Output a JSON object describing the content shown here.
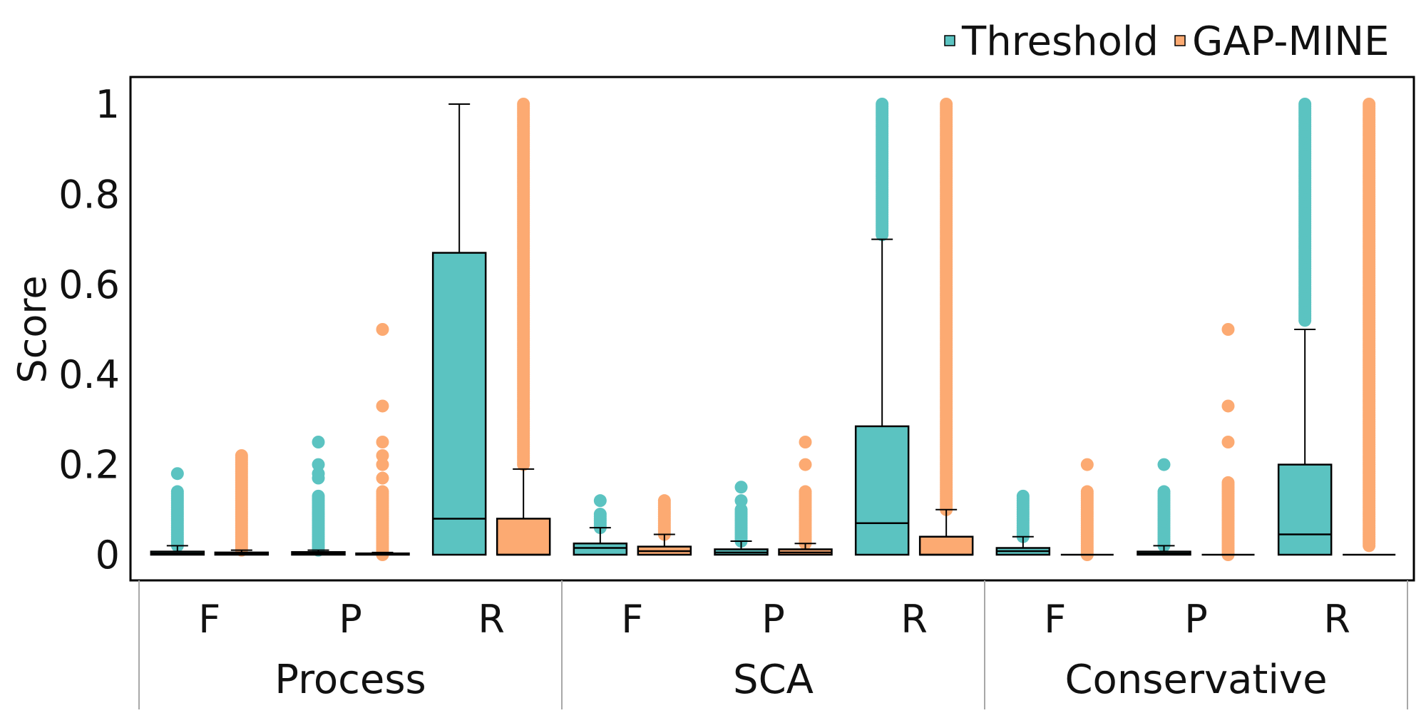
{
  "chart_data": {
    "type": "boxplot",
    "ylabel": "Score",
    "ylim": [
      0,
      1
    ],
    "yticks": [
      0,
      0.2,
      0.4,
      0.6,
      0.8,
      1
    ],
    "ytick_labels": [
      "0",
      "0.2",
      "0.4",
      "0.6",
      "0.8",
      "1"
    ],
    "legend_position": "top-right",
    "groups": [
      "Process",
      "SCA",
      "Conservative"
    ],
    "categories": [
      "F",
      "P",
      "R"
    ],
    "series": [
      {
        "name": "Threshold",
        "color": "#5BC3C1",
        "boxes": [
          {
            "group": "Process",
            "category": "F",
            "min": 0,
            "q1": 0,
            "median": 0.003,
            "q3": 0.007,
            "max": 0.02,
            "outliers_range": [
              0.02,
              0.14
            ],
            "outliers_extra": [
              0.18
            ]
          },
          {
            "group": "Process",
            "category": "P",
            "min": 0,
            "q1": 0,
            "median": 0.003,
            "q3": 0.006,
            "max": 0.01,
            "outliers_range": [
              0.01,
              0.13
            ],
            "outliers_extra": [
              0.17,
              0.18,
              0.2,
              0.25
            ]
          },
          {
            "group": "Process",
            "category": "R",
            "min": 0,
            "q1": 0,
            "median": 0.08,
            "q3": 0.67,
            "max": 1.0,
            "outliers_range": null,
            "outliers_extra": []
          },
          {
            "group": "SCA",
            "category": "F",
            "min": 0,
            "q1": 0,
            "median": 0.015,
            "q3": 0.025,
            "max": 0.06,
            "outliers_range": [
              0.06,
              0.09
            ],
            "outliers_extra": [
              0.12
            ]
          },
          {
            "group": "SCA",
            "category": "P",
            "min": 0,
            "q1": 0,
            "median": 0.005,
            "q3": 0.012,
            "max": 0.03,
            "outliers_range": [
              0.03,
              0.1
            ],
            "outliers_extra": [
              0.12,
              0.15
            ]
          },
          {
            "group": "SCA",
            "category": "R",
            "min": 0,
            "q1": 0,
            "median": 0.07,
            "q3": 0.285,
            "max": 0.7,
            "outliers_range": [
              0.71,
              1.0
            ],
            "outliers_extra": []
          },
          {
            "group": "Conservative",
            "category": "F",
            "min": 0,
            "q1": 0,
            "median": 0.008,
            "q3": 0.015,
            "max": 0.04,
            "outliers_range": [
              0.04,
              0.13
            ],
            "outliers_extra": []
          },
          {
            "group": "Conservative",
            "category": "P",
            "min": 0,
            "q1": 0,
            "median": 0.003,
            "q3": 0.007,
            "max": 0.02,
            "outliers_range": [
              0.02,
              0.14
            ],
            "outliers_extra": [
              0.2
            ]
          },
          {
            "group": "Conservative",
            "category": "R",
            "min": 0,
            "q1": 0,
            "median": 0.045,
            "q3": 0.2,
            "max": 0.5,
            "outliers_range": [
              0.52,
              1.0
            ],
            "outliers_extra": []
          }
        ]
      },
      {
        "name": "GAP-MINE",
        "color": "#FCAA72",
        "boxes": [
          {
            "group": "Process",
            "category": "F",
            "min": 0,
            "q1": 0,
            "median": 0.002,
            "q3": 0.005,
            "max": 0.01,
            "outliers_range": [
              0.01,
              0.22
            ],
            "outliers_extra": []
          },
          {
            "group": "Process",
            "category": "P",
            "min": 0,
            "q1": 0,
            "median": 0.001,
            "q3": 0.003,
            "max": 0.005,
            "outliers_range": [
              0.0,
              0.14
            ],
            "outliers_extra": [
              0.17,
              0.2,
              0.22,
              0.25,
              0.33,
              0.5
            ]
          },
          {
            "group": "Process",
            "category": "R",
            "min": 0,
            "q1": 0,
            "median": 0.0,
            "q3": 0.08,
            "max": 0.19,
            "outliers_range": [
              0.2,
              1.0
            ],
            "outliers_extra": []
          },
          {
            "group": "SCA",
            "category": "F",
            "min": 0,
            "q1": 0,
            "median": 0.008,
            "q3": 0.018,
            "max": 0.045,
            "outliers_range": [
              0.045,
              0.12
            ],
            "outliers_extra": []
          },
          {
            "group": "SCA",
            "category": "P",
            "min": 0,
            "q1": 0,
            "median": 0.005,
            "q3": 0.012,
            "max": 0.025,
            "outliers_range": [
              0.025,
              0.14
            ],
            "outliers_extra": [
              0.2,
              0.25
            ]
          },
          {
            "group": "SCA",
            "category": "R",
            "min": 0,
            "q1": 0,
            "median": 0.0,
            "q3": 0.04,
            "max": 0.1,
            "outliers_range": [
              0.1,
              1.0
            ],
            "outliers_extra": []
          },
          {
            "group": "Conservative",
            "category": "F",
            "min": 0,
            "q1": 0,
            "median": 0,
            "q3": 0,
            "max": 0,
            "outliers_range": [
              0.0,
              0.14
            ],
            "outliers_extra": [
              0.2
            ]
          },
          {
            "group": "Conservative",
            "category": "P",
            "min": 0,
            "q1": 0,
            "median": 0,
            "q3": 0,
            "max": 0,
            "outliers_range": [
              0.0,
              0.16
            ],
            "outliers_extra": [
              0.25,
              0.33,
              0.5
            ]
          },
          {
            "group": "Conservative",
            "category": "R",
            "min": 0,
            "q1": 0,
            "median": 0,
            "q3": 0,
            "max": 0,
            "outliers_range": [
              0.02,
              1.0
            ],
            "outliers_extra": []
          }
        ]
      }
    ]
  }
}
